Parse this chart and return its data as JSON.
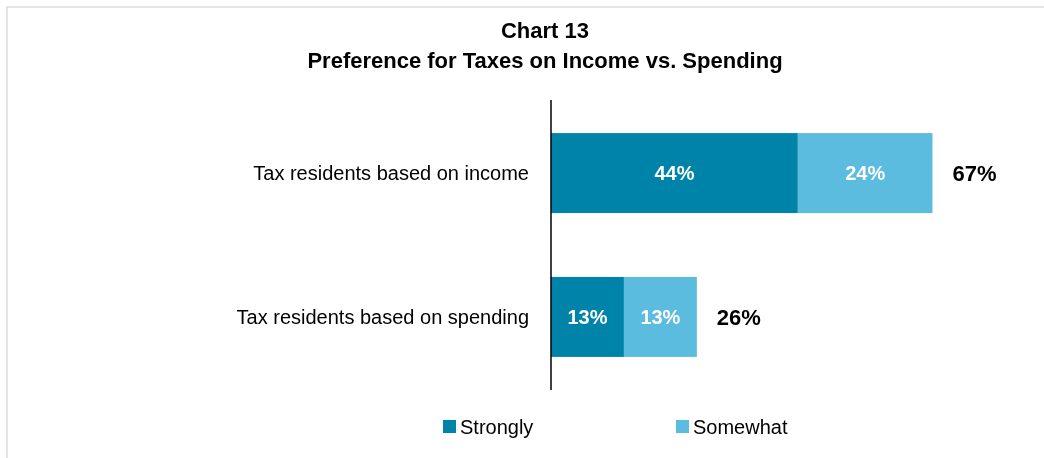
{
  "chart_data": {
    "type": "bar",
    "orientation": "horizontal",
    "stacked": true,
    "title": "Chart 13",
    "subtitle": "Preference for Taxes on Income vs. Spending",
    "categories": [
      "Tax residents based on income",
      "Tax residents based on spending"
    ],
    "series": [
      {
        "name": "Strongly",
        "color": "#0083a9",
        "values": [
          44,
          13
        ],
        "value_labels": [
          "44%",
          "13%"
        ]
      },
      {
        "name": "Somewhat",
        "color": "#5bbcdf",
        "values": [
          24,
          13
        ],
        "value_labels": [
          "24%",
          "13%"
        ]
      }
    ],
    "totals": [
      "67%",
      "26%"
    ],
    "legend": "bottom",
    "tick_labels": "y"
  }
}
